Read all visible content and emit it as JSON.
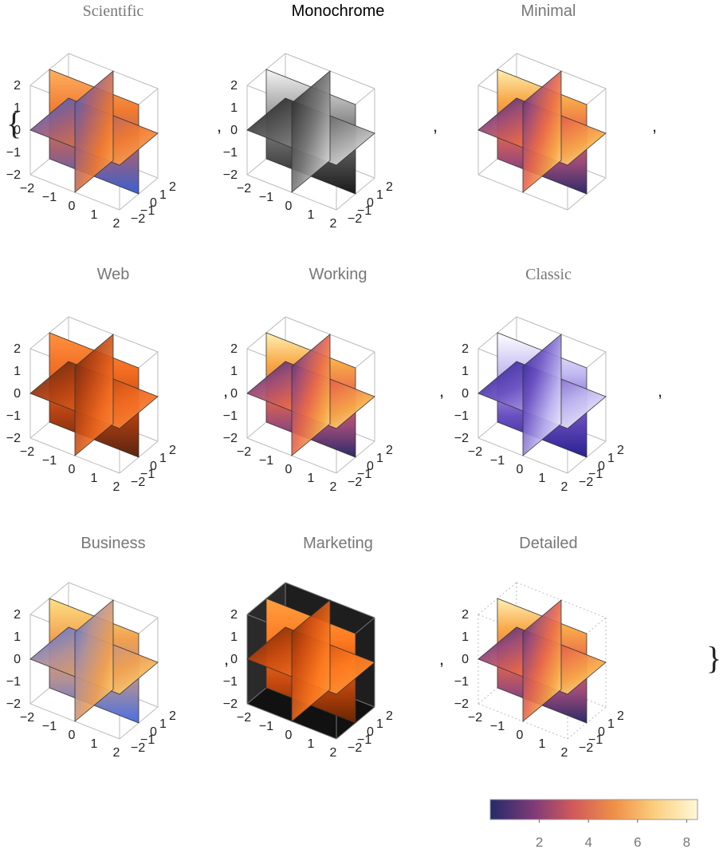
{
  "brace_open": "{",
  "brace_close": "}",
  "separator": ",",
  "panels": [
    {
      "title": "Scientific"
    },
    {
      "title": "Monochrome"
    },
    {
      "title": "Minimal"
    },
    {
      "title": "Web"
    },
    {
      "title": "Working"
    },
    {
      "title": "Classic"
    },
    {
      "title": "Business"
    },
    {
      "title": "Marketing"
    },
    {
      "title": "Detailed"
    }
  ],
  "axis_ticks": [
    "−2",
    "−1",
    "0",
    "1",
    "2"
  ],
  "legend": {
    "ticks": [
      "2",
      "4",
      "6",
      "8"
    ]
  }
}
